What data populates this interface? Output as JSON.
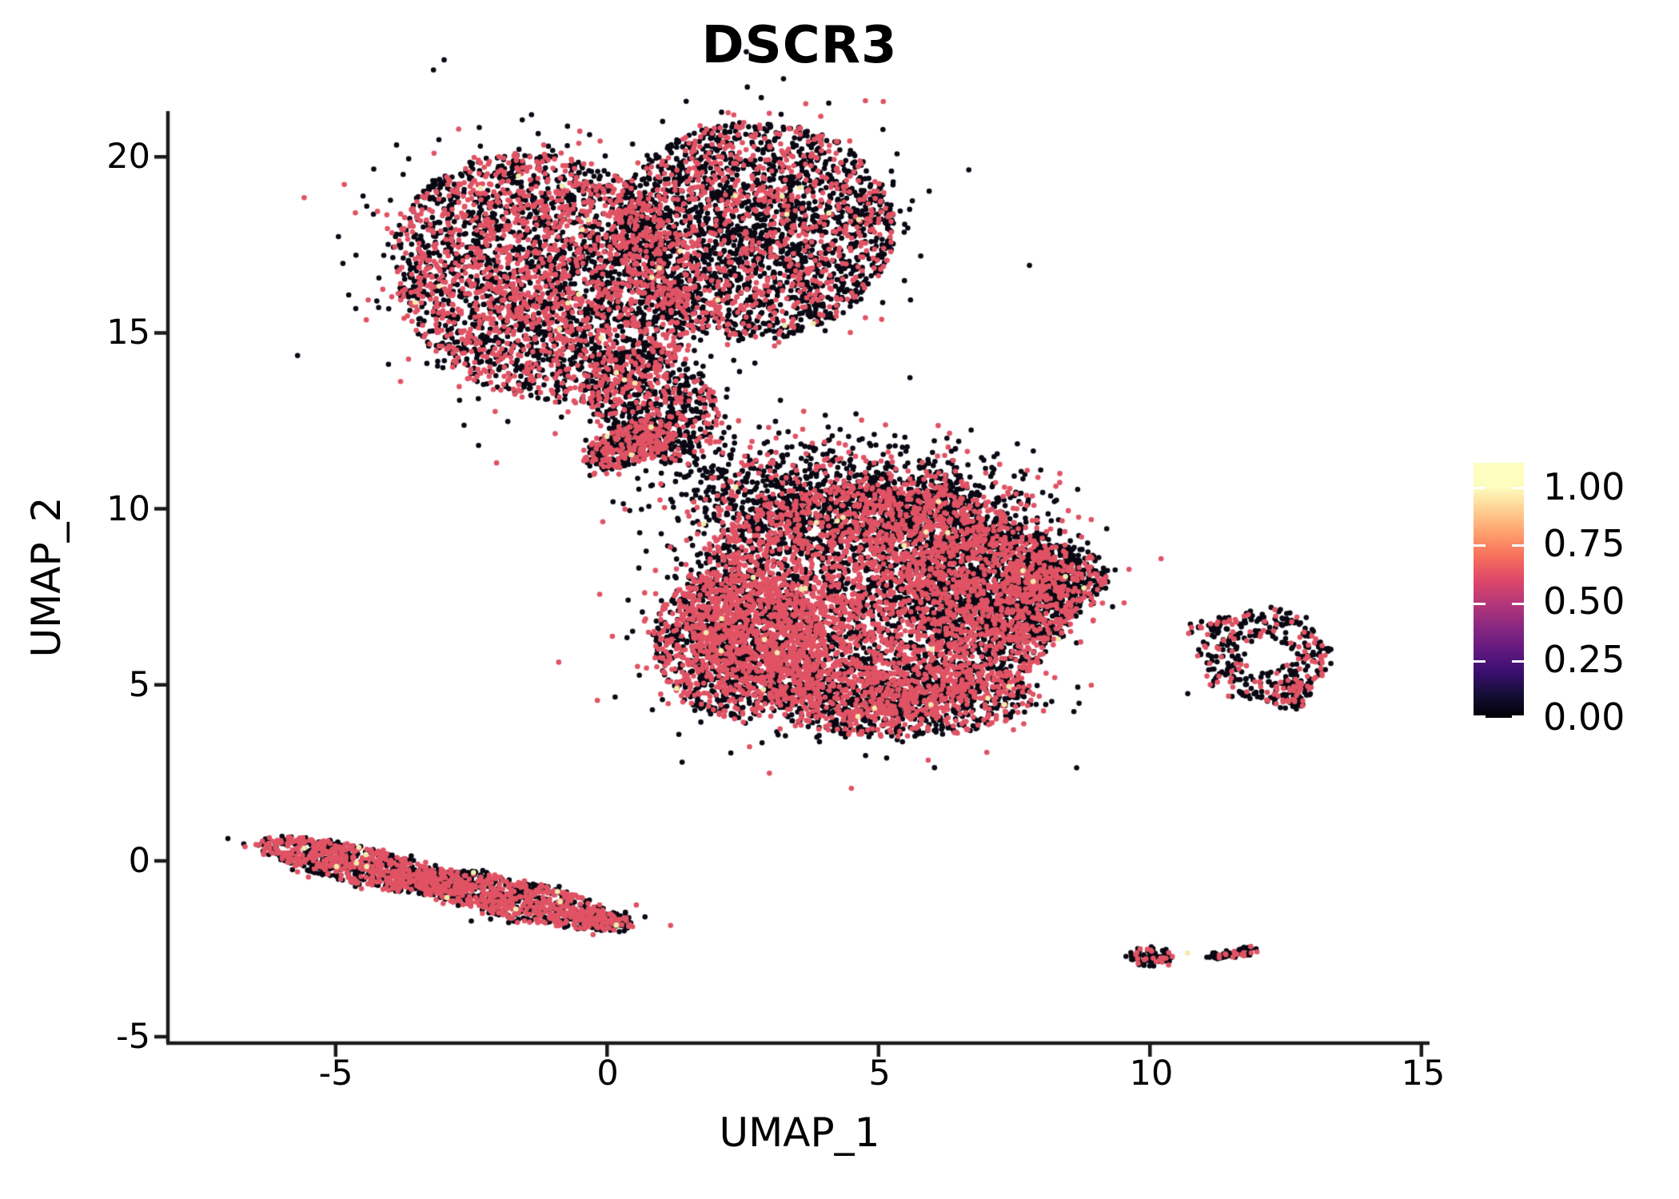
{
  "title": "DSCR3",
  "axes": {
    "x": {
      "label": "UMAP_1",
      "ticks": [
        -5,
        0,
        5,
        10,
        15
      ],
      "tick_labels": [
        "-5",
        "0",
        "5",
        "10",
        "15"
      ],
      "range": [
        -8.09,
        15.15
      ]
    },
    "y": {
      "label": "UMAP_2",
      "ticks": [
        -5,
        0,
        5,
        10,
        15,
        20
      ],
      "tick_labels": [
        "-5",
        "0",
        "5",
        "10",
        "15",
        "20"
      ],
      "range": [
        -5.18,
        21.3
      ]
    }
  },
  "legend": {
    "tick_labels": [
      "1.00",
      "0.75",
      "0.50",
      "0.25",
      "0.00"
    ],
    "tick_values": [
      1.0,
      0.75,
      0.5,
      0.25,
      0.0
    ],
    "bar_max": 1.105,
    "colormap_name": "magma",
    "colormap_stops": [
      "#000004",
      "#140E36",
      "#3B0F70",
      "#641A80",
      "#8C2981",
      "#B73779",
      "#DE4968",
      "#F76F5C",
      "#FE9F6D",
      "#FECF92",
      "#FCFDBF"
    ]
  },
  "colors": {
    "low": "#0A0813",
    "mid": "#E05364",
    "high": "#F2ECAE",
    "axis": "#1a1a1a",
    "background": "#ffffff"
  },
  "chart_data": {
    "type": "scatter",
    "subtype": "umap-feature-plot",
    "title": "DSCR3",
    "xlabel": "UMAP_1",
    "ylabel": "UMAP_2",
    "xlim": [
      -8.09,
      15.15
    ],
    "ylim": [
      -5.18,
      21.3
    ],
    "grid": false,
    "legend_position": "right",
    "point_radius_px": 3.3,
    "expression_fraction_note": "black=0 expression, pink~0.6, pale-yellow~1.0",
    "clusters": [
      {
        "name": "top-left-lobe",
        "cx": -1.15,
        "cy": 16.55,
        "a": 2.75,
        "b": 3.6,
        "rot": 0.25,
        "n": 3400,
        "p_mid": 0.43,
        "p_high": 0.004,
        "style": "blob"
      },
      {
        "name": "top-right-lobe",
        "cx": 2.7,
        "cy": 17.9,
        "a": 2.6,
        "b": 3.1,
        "rot": -0.05,
        "n": 2800,
        "p_mid": 0.3,
        "p_high": 0.003,
        "style": "blob"
      },
      {
        "name": "top-funnel",
        "cx": 0.85,
        "cy": 13.0,
        "a": 1.15,
        "b": 1.7,
        "rot": 0.35,
        "n": 650,
        "p_mid": 0.33,
        "p_high": 0.003,
        "style": "blob"
      },
      {
        "name": "top-arm",
        "cx": 0.45,
        "cy": 11.85,
        "a": 1.0,
        "b": 0.55,
        "rot": 0.65,
        "n": 430,
        "p_mid": 0.46,
        "p_high": 0.004,
        "style": "blob"
      },
      {
        "name": "bridge-scatter",
        "cx": 3.0,
        "cy": 10.35,
        "a": 2.3,
        "b": 1.75,
        "rot": -0.45,
        "n": 680,
        "p_mid": 0.18,
        "p_high": 0.002,
        "style": "fuzzy"
      },
      {
        "name": "mid-core",
        "cx": 4.95,
        "cy": 7.35,
        "a": 3.55,
        "b": 3.35,
        "rot": 0.0,
        "n": 4300,
        "p_mid": 0.55,
        "p_high": 0.004,
        "style": "blob"
      },
      {
        "name": "mid-left",
        "cx": 2.45,
        "cy": 6.1,
        "a": 1.6,
        "b": 2.1,
        "rot": 0.15,
        "n": 1500,
        "p_mid": 0.5,
        "p_high": 0.004,
        "style": "blob"
      },
      {
        "name": "mid-top",
        "cx": 5.7,
        "cy": 10.1,
        "a": 2.3,
        "b": 1.6,
        "rot": -0.3,
        "n": 950,
        "p_mid": 0.3,
        "p_high": 0.003,
        "style": "fuzzy"
      },
      {
        "name": "mid-dark-right",
        "cx": 7.1,
        "cy": 7.7,
        "a": 1.7,
        "b": 1.9,
        "rot": 0.0,
        "n": 1150,
        "p_mid": 0.22,
        "p_high": 0.002,
        "style": "blob"
      },
      {
        "name": "mid-tip",
        "cx": 8.35,
        "cy": 8.0,
        "a": 0.9,
        "b": 0.95,
        "rot": 0.1,
        "n": 380,
        "p_mid": 0.3,
        "p_high": 0.002,
        "style": "blob"
      },
      {
        "name": "mid-bottom",
        "cx": 5.5,
        "cy": 4.55,
        "a": 2.4,
        "b": 1.05,
        "rot": 0.05,
        "n": 950,
        "p_mid": 0.4,
        "p_high": 0.003,
        "style": "blob"
      },
      {
        "name": "right-ring",
        "cx": 12.1,
        "cy": 5.85,
        "r_in": 0.42,
        "r_out": 1.18,
        "ystretch": 1.15,
        "n": 330,
        "p_mid": 0.27,
        "p_high": 0.006,
        "style": "ring"
      },
      {
        "name": "right-ring-tail",
        "cx": 12.62,
        "cy": 4.78,
        "a": 0.35,
        "b": 0.55,
        "rot": -0.2,
        "n": 90,
        "p_mid": 0.3,
        "p_high": 0.0,
        "style": "blob"
      },
      {
        "name": "right-ring-trail",
        "cx": 11.15,
        "cy": 6.7,
        "a": 0.45,
        "b": 0.2,
        "rot": 0.45,
        "n": 26,
        "p_mid": 0.2,
        "p_high": 0.0,
        "style": "fuzzy"
      },
      {
        "name": "bottom-band-left",
        "cx": -4.5,
        "cy": -0.15,
        "a": 2.05,
        "b": 0.52,
        "rot": -0.34,
        "n": 880,
        "p_mid": 0.52,
        "p_high": 0.008,
        "style": "blob"
      },
      {
        "name": "bottom-band-right",
        "cx": -1.7,
        "cy": -1.08,
        "a": 2.05,
        "b": 0.55,
        "rot": -0.34,
        "n": 880,
        "p_mid": 0.5,
        "p_high": 0.008,
        "style": "blob"
      },
      {
        "name": "bottom-band-tip",
        "cx": -0.05,
        "cy": -1.7,
        "a": 0.55,
        "b": 0.3,
        "rot": -0.3,
        "n": 130,
        "p_mid": 0.45,
        "p_high": 0.006,
        "style": "blob"
      },
      {
        "name": "island-left",
        "cx": 10.02,
        "cy": -2.72,
        "a": 0.42,
        "b": 0.28,
        "rot": 0.0,
        "n": 78,
        "p_mid": 0.33,
        "p_high": 0.0,
        "style": "blob"
      },
      {
        "name": "island-right",
        "cx": 11.54,
        "cy": -2.62,
        "a": 0.5,
        "b": 0.13,
        "rot": 0.22,
        "n": 66,
        "p_mid": 0.28,
        "p_high": 0.0,
        "style": "blob"
      }
    ],
    "outlier_points": [
      {
        "x": 10.69,
        "y": -2.62,
        "c": "high"
      },
      {
        "x": 6.69,
        "y": 3.7,
        "c": "low"
      },
      {
        "x": 5.15,
        "y": 2.92,
        "c": "low"
      },
      {
        "x": 8.92,
        "y": 8.32,
        "c": "low"
      },
      {
        "x": 8.8,
        "y": 8.45,
        "c": "mid"
      }
    ]
  }
}
